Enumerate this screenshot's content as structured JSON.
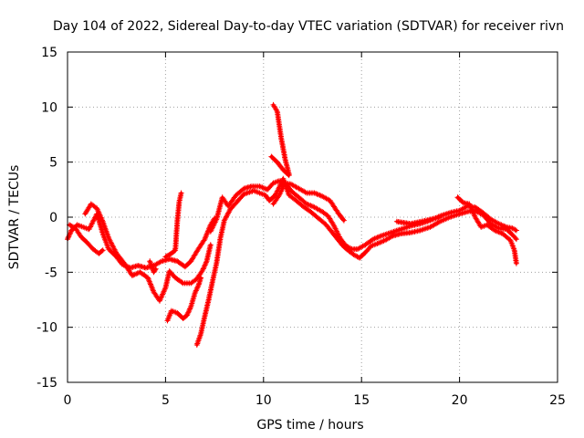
{
  "chart_data": {
    "type": "scatter",
    "title": "Day 104 of 2022, Sidereal Day-to-day VTEC variation (SDTVAR) for receiver rivn",
    "xlabel": "GPS time / hours",
    "ylabel": "SDTVAR / TECUs",
    "xlim": [
      0,
      25
    ],
    "ylim": [
      -15,
      15
    ],
    "x_ticks": [
      0,
      5,
      10,
      15,
      20,
      25
    ],
    "y_ticks": [
      -15,
      -10,
      -5,
      0,
      5,
      10,
      15
    ],
    "x_tick_labels": [
      "0",
      "5",
      "10",
      "15",
      "20",
      "25"
    ],
    "y_tick_labels": [
      "-15",
      "-10",
      "-5",
      "0",
      "5",
      "10",
      "15"
    ],
    "grid": true,
    "marker": "plus",
    "color": "#ff0000",
    "series": [
      {
        "name": "track-1",
        "points": [
          [
            0.0,
            -2.0
          ],
          [
            0.2,
            -1.2
          ],
          [
            0.5,
            -0.7
          ],
          [
            0.8,
            -0.9
          ],
          [
            1.1,
            -1.1
          ],
          [
            1.3,
            -0.4
          ],
          [
            1.5,
            0.3
          ],
          [
            1.8,
            -1.5
          ],
          [
            2.1,
            -2.9
          ],
          [
            2.5,
            -3.6
          ],
          [
            2.8,
            -4.3
          ],
          [
            3.2,
            -4.6
          ],
          [
            3.6,
            -4.4
          ],
          [
            4.0,
            -4.6
          ],
          [
            4.4,
            -4.4
          ],
          [
            4.8,
            -4.0
          ],
          [
            5.2,
            -3.8
          ],
          [
            5.6,
            -4.0
          ],
          [
            6.0,
            -4.5
          ],
          [
            6.3,
            -4.0
          ],
          [
            6.6,
            -3.1
          ],
          [
            7.0,
            -2.0
          ],
          [
            7.3,
            -0.7
          ],
          [
            7.5,
            -0.1
          ]
        ]
      },
      {
        "name": "track-2",
        "points": [
          [
            0.1,
            -0.7
          ],
          [
            0.4,
            -1.0
          ],
          [
            0.7,
            -1.8
          ],
          [
            1.0,
            -2.3
          ],
          [
            1.3,
            -2.9
          ],
          [
            1.6,
            -3.3
          ],
          [
            1.8,
            -3.0
          ]
        ]
      },
      {
        "name": "track-3",
        "points": [
          [
            0.9,
            0.3
          ],
          [
            1.2,
            1.2
          ],
          [
            1.5,
            0.8
          ],
          [
            1.8,
            -0.4
          ],
          [
            2.1,
            -1.9
          ],
          [
            2.5,
            -3.3
          ],
          [
            2.9,
            -4.2
          ],
          [
            3.3,
            -5.3
          ],
          [
            3.7,
            -5.0
          ],
          [
            4.1,
            -5.5
          ],
          [
            4.4,
            -6.8
          ],
          [
            4.7,
            -7.6
          ],
          [
            5.0,
            -6.4
          ],
          [
            5.2,
            -4.9
          ],
          [
            5.5,
            -5.5
          ],
          [
            5.9,
            -6.0
          ],
          [
            6.3,
            -6.0
          ],
          [
            6.6,
            -5.6
          ],
          [
            6.9,
            -4.8
          ],
          [
            7.1,
            -4.0
          ],
          [
            7.3,
            -2.5
          ]
        ]
      },
      {
        "name": "track-4",
        "points": [
          [
            4.2,
            -4.0
          ],
          [
            4.4,
            -5.0
          ],
          [
            4.5,
            -4.7
          ]
        ]
      },
      {
        "name": "track-5",
        "points": [
          [
            5.1,
            -9.4
          ],
          [
            5.3,
            -8.5
          ],
          [
            5.6,
            -8.7
          ],
          [
            5.9,
            -9.2
          ],
          [
            6.1,
            -8.9
          ],
          [
            6.3,
            -8.1
          ],
          [
            6.5,
            -6.9
          ],
          [
            6.7,
            -6.1
          ],
          [
            6.8,
            -5.5
          ]
        ]
      },
      {
        "name": "track-6",
        "points": [
          [
            5.0,
            -3.6
          ],
          [
            5.3,
            -3.3
          ],
          [
            5.5,
            -3.0
          ],
          [
            5.6,
            -0.4
          ],
          [
            5.7,
            1.4
          ],
          [
            5.8,
            2.2
          ]
        ]
      },
      {
        "name": "track-7",
        "points": [
          [
            6.6,
            -11.6
          ],
          [
            6.8,
            -10.6
          ],
          [
            7.0,
            -9.0
          ],
          [
            7.2,
            -7.5
          ],
          [
            7.4,
            -5.8
          ],
          [
            7.6,
            -4.2
          ],
          [
            7.8,
            -1.9
          ],
          [
            8.0,
            -0.3
          ],
          [
            8.3,
            0.7
          ],
          [
            8.7,
            1.5
          ],
          [
            9.0,
            2.1
          ],
          [
            9.5,
            2.4
          ],
          [
            9.8,
            2.2
          ],
          [
            10.1,
            2.0
          ],
          [
            10.3,
            1.5
          ],
          [
            10.6,
            2.0
          ],
          [
            10.8,
            2.7
          ],
          [
            11.0,
            3.5
          ],
          [
            11.3,
            2.0
          ],
          [
            11.6,
            1.6
          ],
          [
            12.0,
            1.0
          ],
          [
            12.4,
            0.5
          ],
          [
            12.8,
            -0.1
          ],
          [
            13.2,
            -0.7
          ],
          [
            13.6,
            -1.6
          ],
          [
            14.0,
            -2.5
          ],
          [
            14.3,
            -3.0
          ],
          [
            14.6,
            -3.4
          ],
          [
            14.9,
            -3.7
          ],
          [
            15.2,
            -3.2
          ],
          [
            15.5,
            -2.6
          ],
          [
            15.8,
            -2.4
          ],
          [
            16.2,
            -2.1
          ],
          [
            16.6,
            -1.7
          ],
          [
            17.0,
            -1.5
          ],
          [
            17.5,
            -1.4
          ],
          [
            18.0,
            -1.2
          ],
          [
            18.5,
            -0.9
          ],
          [
            19.0,
            -0.4
          ],
          [
            19.5,
            0.0
          ],
          [
            20.0,
            0.3
          ],
          [
            20.4,
            0.5
          ],
          [
            20.8,
            0.6
          ],
          [
            21.2,
            0.2
          ],
          [
            21.6,
            -0.6
          ],
          [
            22.0,
            -1.0
          ],
          [
            22.4,
            -1.1
          ],
          [
            22.7,
            -1.6
          ],
          [
            22.9,
            -2.0
          ]
        ]
      },
      {
        "name": "track-8",
        "points": [
          [
            7.3,
            -1.3
          ],
          [
            7.6,
            -0.2
          ],
          [
            7.9,
            1.8
          ],
          [
            8.2,
            1.0
          ],
          [
            8.6,
            2.0
          ],
          [
            9.0,
            2.6
          ],
          [
            9.4,
            2.8
          ],
          [
            9.8,
            2.8
          ],
          [
            10.2,
            2.5
          ],
          [
            10.5,
            3.1
          ],
          [
            10.8,
            3.3
          ],
          [
            11.1,
            3.1
          ],
          [
            11.4,
            2.4
          ],
          [
            11.8,
            1.8
          ],
          [
            12.2,
            1.2
          ],
          [
            12.6,
            0.9
          ],
          [
            13.0,
            0.5
          ],
          [
            13.3,
            0.1
          ],
          [
            13.6,
            -0.8
          ],
          [
            13.9,
            -1.9
          ],
          [
            14.2,
            -2.6
          ],
          [
            14.5,
            -2.9
          ],
          [
            14.8,
            -2.9
          ],
          [
            15.2,
            -2.5
          ],
          [
            15.6,
            -2.0
          ],
          [
            16.0,
            -1.7
          ],
          [
            16.5,
            -1.4
          ],
          [
            17.0,
            -1.1
          ],
          [
            17.5,
            -0.8
          ],
          [
            18.0,
            -0.6
          ],
          [
            18.5,
            -0.3
          ],
          [
            19.0,
            0.1
          ],
          [
            19.5,
            0.4
          ],
          [
            20.0,
            0.6
          ],
          [
            20.4,
            1.0
          ],
          [
            20.8,
            0.9
          ],
          [
            21.2,
            0.4
          ],
          [
            21.6,
            -0.2
          ],
          [
            22.0,
            -0.6
          ],
          [
            22.4,
            -0.9
          ],
          [
            22.7,
            -1.0
          ],
          [
            22.9,
            -1.2
          ]
        ]
      },
      {
        "name": "track-9",
        "points": [
          [
            10.5,
            1.2
          ],
          [
            10.8,
            2.0
          ],
          [
            11.1,
            3.1
          ],
          [
            11.4,
            3.0
          ],
          [
            11.8,
            2.6
          ],
          [
            12.2,
            2.2
          ],
          [
            12.6,
            2.2
          ],
          [
            13.0,
            1.9
          ],
          [
            13.4,
            1.5
          ],
          [
            13.8,
            0.4
          ],
          [
            14.1,
            -0.3
          ]
        ]
      },
      {
        "name": "track-10",
        "points": [
          [
            10.4,
            5.5
          ],
          [
            10.7,
            5.0
          ],
          [
            11.0,
            4.3
          ],
          [
            11.3,
            3.8
          ]
        ]
      },
      {
        "name": "track-11",
        "points": [
          [
            10.5,
            10.2
          ],
          [
            10.7,
            9.6
          ],
          [
            10.9,
            7.2
          ],
          [
            11.1,
            5.3
          ],
          [
            11.3,
            3.9
          ]
        ]
      },
      {
        "name": "track-12",
        "points": [
          [
            19.9,
            1.8
          ],
          [
            20.2,
            1.3
          ],
          [
            20.5,
            1.2
          ],
          [
            20.8,
            0.0
          ],
          [
            21.1,
            -0.9
          ],
          [
            21.4,
            -0.7
          ],
          [
            21.8,
            -1.2
          ],
          [
            22.2,
            -1.5
          ],
          [
            22.6,
            -2.1
          ],
          [
            22.8,
            -3.0
          ],
          [
            22.9,
            -4.2
          ]
        ]
      },
      {
        "name": "track-13",
        "points": [
          [
            16.8,
            -0.4
          ],
          [
            17.5,
            -0.6
          ],
          [
            18.3,
            -0.3
          ],
          [
            19.0,
            0.0
          ]
        ]
      }
    ]
  }
}
